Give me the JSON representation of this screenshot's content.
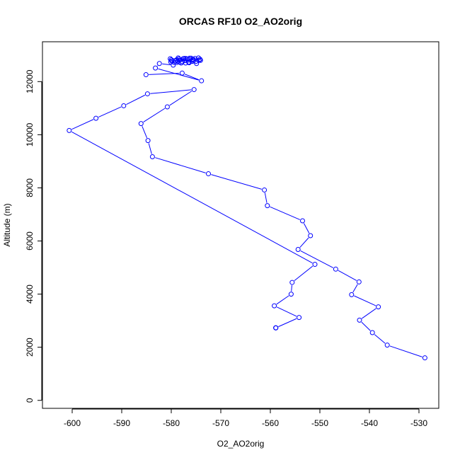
{
  "chart_data": {
    "type": "line",
    "title": "ORCAS RF10 O2_AO2orig",
    "xlabel": "O2_AO2orig",
    "ylabel": "Altitude (m)",
    "xlim": [
      -606,
      -526
    ],
    "ylim": [
      -300,
      13500
    ],
    "xticks": [
      -600,
      -590,
      -580,
      -570,
      -560,
      -550,
      -540,
      -530
    ],
    "yticks": [
      0,
      2000,
      4000,
      6000,
      8000,
      10000,
      12000
    ],
    "grid": false,
    "legend": "none",
    "series": [
      {
        "color": "#0000ff",
        "marker": "open-circle",
        "x": [
          -528.8,
          -536.4,
          -539.4,
          -542.0,
          -538.2,
          -543.6,
          -542.1,
          -546.8,
          -554.4,
          -551.9,
          -553.5,
          -560.6,
          -561.2,
          -572.5,
          -583.8,
          -584.7,
          -586.1,
          -580.8,
          -575.4,
          -584.8,
          -589.6,
          -595.2,
          -600.6,
          -551.0,
          -555.6,
          -555.8,
          -559.2,
          -554.2,
          -558.9
        ],
        "y": [
          1600,
          2080,
          2550,
          3020,
          3520,
          3980,
          4460,
          4940,
          5680,
          6200,
          6760,
          7330,
          7920,
          8530,
          9170,
          9780,
          10420,
          11050,
          11700,
          11540,
          11090,
          10620,
          10160,
          5120,
          4440,
          4000,
          3560,
          3120,
          2730
        ]
      },
      {
        "color": "#0000ff",
        "marker": "open-circle",
        "x": [
          -558.9,
          -558.9
        ],
        "y": [
          2730,
          2730
        ]
      },
      {
        "color": "#0000ff",
        "marker": "open-circle",
        "x": [
          -585.1,
          -577.8,
          -573.9,
          -583.2,
          -582.4,
          -579.6,
          -577.1,
          -575.8,
          -574.4,
          -576.3,
          -578.5,
          -580.2,
          -577.4,
          -576.0,
          -574.5,
          -576.8,
          -578.3,
          -579.9,
          -578.9,
          -577.6,
          -576.3,
          -575.2,
          -574.2,
          -575.7,
          -577.3,
          -578.7,
          -580.1,
          -579.4,
          -578.0,
          -576.5,
          -575.0,
          -574.1,
          -575.6,
          -577.1,
          -578.6,
          -580.0,
          -579.2,
          -577.8,
          -576.4,
          -574.9
        ],
        "y": [
          12260,
          12320,
          12030,
          12510,
          12680,
          12620,
          12700,
          12760,
          12800,
          12830,
          12850,
          12860,
          12870,
          12880,
          12890,
          12850,
          12800,
          12780,
          12820,
          12860,
          12880,
          12870,
          12840,
          12810,
          12790,
          12760,
          12740,
          12720,
          12700,
          12730,
          12760,
          12800,
          12840,
          12870,
          12890,
          12820,
          12780,
          12750,
          12710,
          12680
        ]
      }
    ]
  }
}
